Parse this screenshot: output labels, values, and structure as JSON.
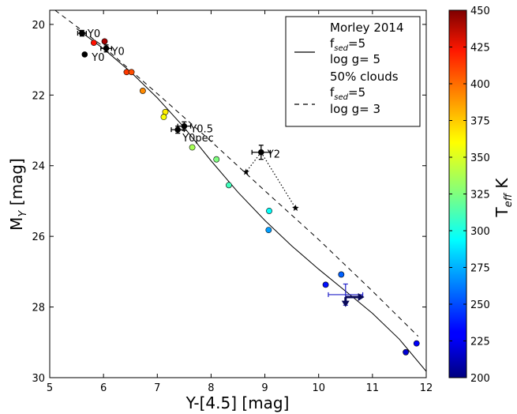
{
  "chart_data": {
    "type": "scatter",
    "xlabel": "Y-[4.5] [mag]",
    "ylabel": "M_Y [mag]",
    "ylabel_main": "M",
    "ylabel_sub": "Y",
    "ylabel_unit": " [mag]",
    "xlim": [
      5,
      12
    ],
    "ylim": [
      30,
      19.6
    ],
    "y_inverted": true,
    "xticks": [
      5,
      6,
      7,
      8,
      9,
      10,
      11,
      12
    ],
    "yticks": [
      20,
      22,
      24,
      26,
      28,
      30
    ],
    "grid": false,
    "legend_placement": "top-right",
    "legend": {
      "title": "Morley 2014",
      "entries": [
        {
          "style": "solid",
          "lines": [
            {
              "main": "f",
              "sub": "sed",
              "rest": "=5"
            },
            {
              "main": "log g= 5"
            },
            {
              "main": "50% clouds"
            }
          ]
        },
        {
          "style": "dashed",
          "lines": [
            {
              "main": "f",
              "sub": "sed",
              "rest": "=5"
            },
            {
              "main": "log g= 3"
            }
          ]
        }
      ]
    },
    "colorbar": {
      "label_main": "T",
      "label_sub": "eff",
      "label_rest": " K",
      "min": 200,
      "max": 450,
      "ticks": [
        200,
        225,
        250,
        275,
        300,
        325,
        350,
        375,
        400,
        425,
        450
      ],
      "colormap": "jet"
    },
    "series": [
      {
        "marker": "colored-circle",
        "points": [
          {
            "x": 5.82,
            "y": 20.52,
            "teff": 415
          },
          {
            "x": 6.02,
            "y": 20.48,
            "teff": 440
          },
          {
            "x": 6.43,
            "y": 21.35,
            "teff": 405
          },
          {
            "x": 6.52,
            "y": 21.35,
            "teff": 400
          },
          {
            "x": 6.73,
            "y": 21.88,
            "teff": 385
          },
          {
            "x": 7.15,
            "y": 22.48,
            "teff": 360
          },
          {
            "x": 7.12,
            "y": 22.62,
            "teff": 355
          },
          {
            "x": 7.65,
            "y": 23.48,
            "teff": 335
          },
          {
            "x": 8.1,
            "y": 23.82,
            "teff": 325
          },
          {
            "x": 8.33,
            "y": 24.55,
            "teff": 310
          },
          {
            "x": 9.08,
            "y": 25.28,
            "teff": 295
          },
          {
            "x": 9.07,
            "y": 25.82,
            "teff": 270
          },
          {
            "x": 10.42,
            "y": 27.08,
            "teff": 255
          },
          {
            "x": 10.13,
            "y": 27.37,
            "teff": 235
          },
          {
            "x": 11.82,
            "y": 29.03,
            "teff": 230
          },
          {
            "x": 11.62,
            "y": 29.28,
            "teff": 220
          }
        ]
      },
      {
        "marker": "black-dot-with-errors",
        "points": [
          {
            "x": 5.6,
            "y": 20.25,
            "label": "Y0",
            "xerr": 0.08,
            "yerr": 0.08
          },
          {
            "x": 5.65,
            "y": 20.85,
            "label": "Y0",
            "xerr": 0,
            "yerr": 0
          },
          {
            "x": 6.05,
            "y": 20.68,
            "label": "Y0",
            "xerr": 0.1,
            "yerr": 0.1
          },
          {
            "x": 7.5,
            "y": 22.88,
            "label": "Y0.5",
            "xerr": 0.12,
            "yerr": 0.12
          },
          {
            "x": 7.38,
            "y": 22.98,
            "label": "Y0pec",
            "xerr": 0.12,
            "yerr": 0.1
          },
          {
            "x": 8.93,
            "y": 23.62,
            "label": "Y2",
            "xerr": 0.17,
            "yerr": 0.2
          }
        ]
      },
      {
        "marker": "star",
        "points": [
          {
            "x": 8.65,
            "y": 24.18
          },
          {
            "x": 9.57,
            "y": 25.2
          }
        ]
      },
      {
        "marker": "blue-cross",
        "points": [
          {
            "x": 10.5,
            "y": 27.65,
            "xerr": 0.32,
            "yerr": 0.3
          }
        ]
      },
      {
        "marker": "navy-arrow",
        "points": [
          {
            "x": 10.5,
            "y": 27.72,
            "dx": 0.35,
            "dy": 0.28
          }
        ]
      }
    ],
    "dotted_connectors": [
      [
        8.93,
        23.62,
        8.65,
        24.18
      ],
      [
        8.93,
        23.62,
        9.57,
        25.2
      ]
    ],
    "model_solid": {
      "x": [
        5.5,
        6.0,
        6.5,
        7.0,
        7.5,
        8.0,
        8.5,
        9.0,
        9.5,
        10.0,
        10.5,
        11.0,
        11.5,
        12.0
      ],
      "y": [
        20.12,
        20.69,
        21.34,
        22.08,
        22.92,
        23.86,
        24.75,
        25.55,
        26.27,
        26.93,
        27.55,
        28.18,
        28.91,
        29.82
      ]
    },
    "model_dashed": {
      "x": [
        5.1,
        6.0,
        7.0,
        8.0,
        9.0,
        10.0,
        11.0,
        11.85
      ],
      "y": [
        19.6,
        20.63,
        21.96,
        23.31,
        24.71,
        26.09,
        27.55,
        28.83
      ]
    }
  }
}
